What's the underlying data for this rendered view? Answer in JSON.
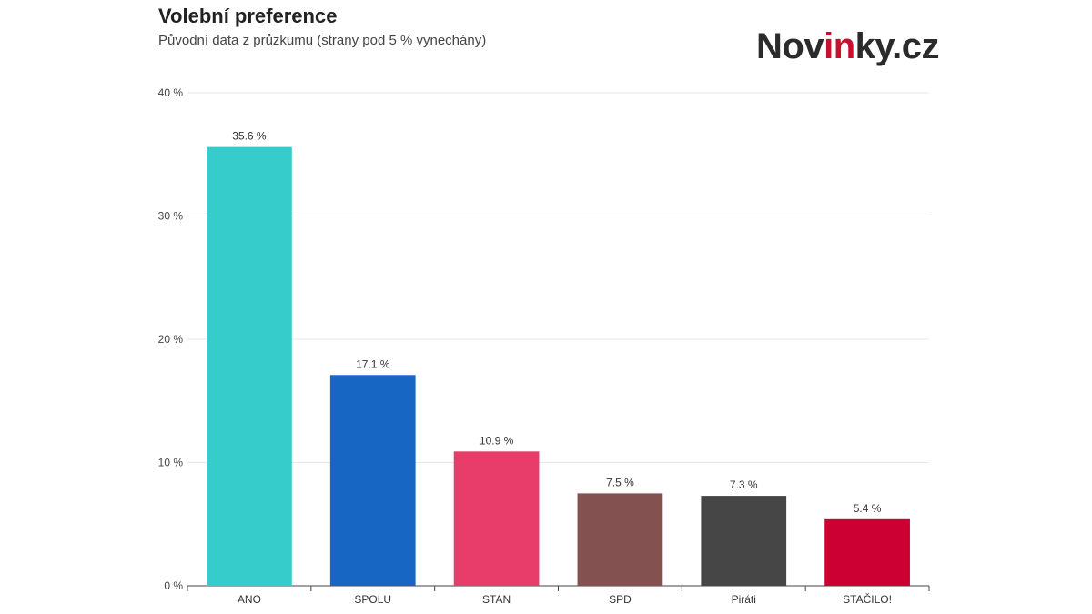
{
  "header": {
    "title": "Volební preference",
    "subtitle": "Původní data z průzkumu (strany pod 5 % vynechány)"
  },
  "logo": {
    "part_a": "Nov",
    "part_b": "in",
    "part_c": "ky.cz",
    "colors": {
      "dark": "#2b2b2b",
      "red": "#c8102e"
    }
  },
  "chart_data": {
    "type": "bar",
    "title": "Volební preference",
    "subtitle": "Původní data z průzkumu (strany pod 5 % vynechány)",
    "categories": [
      "ANO",
      "SPOLU",
      "STAN",
      "SPD",
      "Piráti",
      "STAČILO!"
    ],
    "values": [
      35.6,
      17.1,
      10.9,
      7.5,
      7.3,
      5.4
    ],
    "data_labels": [
      "35.6 %",
      "17.1 %",
      "10.9 %",
      "7.5 %",
      "7.3 %",
      "5.4 %"
    ],
    "colors": [
      "#36cccc",
      "#1866c4",
      "#e83c6a",
      "#845151",
      "#464646",
      "#cc0033"
    ],
    "ylim": [
      0,
      40
    ],
    "yticks": [
      0,
      10,
      20,
      30,
      40
    ],
    "ytick_labels": [
      "0 %",
      "10 %",
      "20 %",
      "30 %",
      "40 %"
    ],
    "xlabel": "",
    "ylabel": "",
    "grid": true,
    "legend": false
  }
}
